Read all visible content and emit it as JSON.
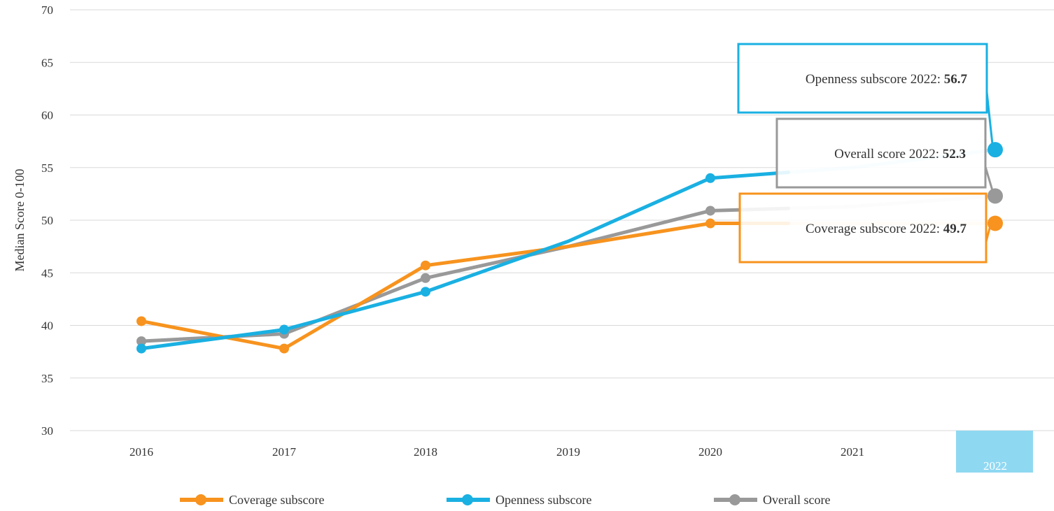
{
  "chart_data": {
    "type": "line",
    "ylabel": "Median Score 0-100",
    "ylim": [
      30,
      70
    ],
    "yticks": [
      30,
      35,
      40,
      45,
      50,
      55,
      60,
      65,
      70
    ],
    "x": [
      "2016",
      "2017",
      "2018",
      "2019",
      "2020",
      "2021",
      "2022"
    ],
    "highlighted_category": "2022",
    "grid": true,
    "legend_position": "bottom",
    "series": [
      {
        "name": "Coverage subscore",
        "color": "#f7931e",
        "values": [
          40.4,
          37.8,
          45.7,
          47.5,
          49.7,
          49.7,
          49.7
        ]
      },
      {
        "name": "Openness subscore",
        "color": "#1ab0e2",
        "values": [
          37.8,
          39.6,
          43.2,
          48.0,
          54.0,
          55.0,
          56.7
        ]
      },
      {
        "name": "Overall score",
        "color": "#999999",
        "values": [
          38.5,
          39.2,
          44.5,
          47.5,
          50.9,
          51.3,
          52.3
        ]
      }
    ],
    "tooltips": [
      {
        "series": "Openness subscore",
        "prefix": "Openness subscore 2022: ",
        "value": "56.7",
        "color": "#1ab0e2"
      },
      {
        "series": "Overall score",
        "prefix": "Overall score 2022: ",
        "value": "52.3",
        "color": "#999999"
      },
      {
        "series": "Coverage subscore",
        "prefix": "Coverage subscore 2022: ",
        "value": "49.7",
        "color": "#f7931e"
      }
    ]
  },
  "colors": {
    "grid": "#d9d9d9",
    "highlight_band": "#8fd8f2",
    "highlight_text": "#ffffff"
  }
}
